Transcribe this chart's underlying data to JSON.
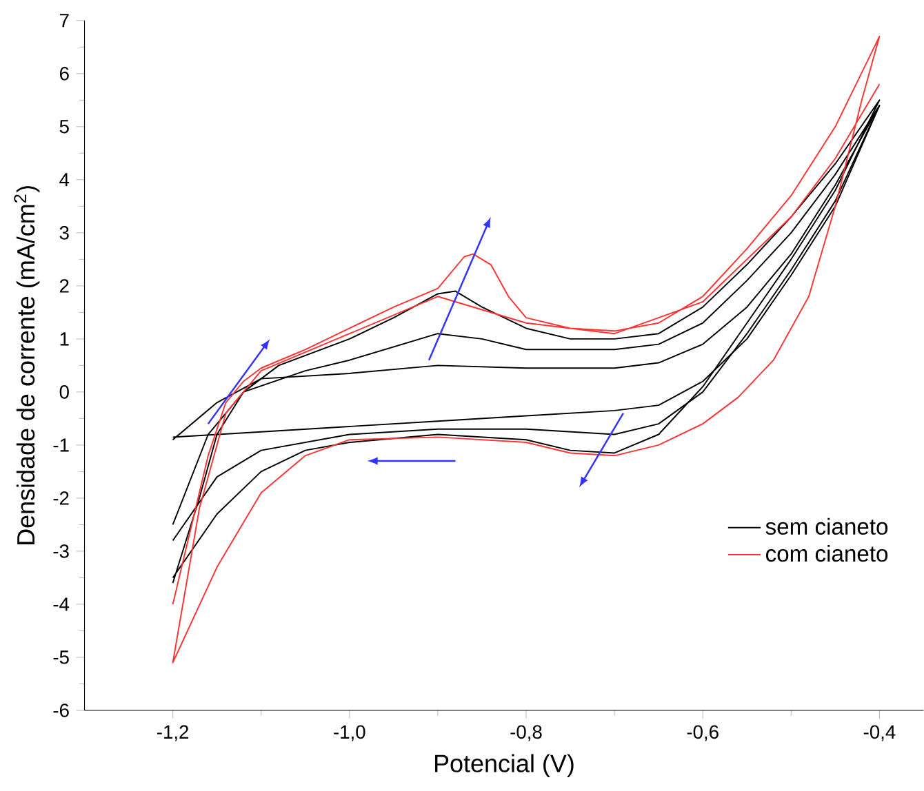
{
  "chart_data": {
    "type": "line",
    "xlabel": "Potencial (V)",
    "ylabel": "Densidade de corrente (mA/cm$^{2}$)",
    "xlim": [
      -1.3,
      -0.35
    ],
    "ylim": [
      -6,
      7
    ],
    "xticks": [
      {
        "value": -1.2,
        "label": "-1,2"
      },
      {
        "value": -1.0,
        "label": "-1,0"
      },
      {
        "value": -0.8,
        "label": "-0,8"
      },
      {
        "value": -0.6,
        "label": "-0,6"
      },
      {
        "value": -0.4,
        "label": "-0,4"
      }
    ],
    "yticks": [
      -6,
      -5,
      -4,
      -3,
      -2,
      -1,
      0,
      1,
      2,
      3,
      4,
      5,
      6,
      7
    ],
    "legend": "bottom right",
    "marker": "none",
    "line_style": "solid",
    "series": [
      {
        "color": "#000000",
        "x": [
          -1.2,
          -1.15,
          -1.1,
          -1.0,
          -0.9,
          -0.8,
          -0.7,
          -0.65,
          -0.6,
          -0.55,
          -0.5,
          -0.45,
          -0.4,
          -0.45,
          -0.5,
          -0.55,
          -0.6,
          -0.65,
          -0.7,
          -0.8,
          -0.9,
          -1.0,
          -1.1,
          -1.2
        ],
        "values": [
          -0.9,
          -0.2,
          0.25,
          0.35,
          0.5,
          0.45,
          0.45,
          0.55,
          0.9,
          1.6,
          2.6,
          3.9,
          5.4,
          3.5,
          2.2,
          1.0,
          0.2,
          -0.25,
          -0.35,
          -0.45,
          -0.55,
          -0.65,
          -0.75,
          -0.85
        ]
      },
      {
        "color": "#000000",
        "x": [
          -1.2,
          -1.16,
          -1.12,
          -1.05,
          -1.0,
          -0.9,
          -0.85,
          -0.8,
          -0.7,
          -0.65,
          -0.6,
          -0.55,
          -0.5,
          -0.45,
          -0.4,
          -0.45,
          -0.5,
          -0.55,
          -0.6,
          -0.65,
          -0.7,
          -0.8,
          -0.9,
          -1.0,
          -1.1,
          -1.15,
          -1.2
        ],
        "values": [
          -2.5,
          -0.8,
          0.0,
          0.4,
          0.6,
          1.1,
          1.0,
          0.8,
          0.8,
          0.9,
          1.3,
          2.1,
          3.0,
          4.1,
          5.4,
          3.6,
          2.3,
          1.1,
          0.0,
          -0.6,
          -0.8,
          -0.7,
          -0.7,
          -0.8,
          -1.1,
          -1.6,
          -2.8
        ]
      },
      {
        "name": "sem cianeto",
        "color": "#000000",
        "x": [
          -1.2,
          -1.17,
          -1.15,
          -1.12,
          -1.08,
          -1.0,
          -0.95,
          -0.9,
          -0.88,
          -0.85,
          -0.8,
          -0.75,
          -0.7,
          -0.65,
          -0.6,
          -0.55,
          -0.5,
          -0.45,
          -0.4,
          -0.45,
          -0.5,
          -0.55,
          -0.6,
          -0.65,
          -0.7,
          -0.75,
          -0.8,
          -0.9,
          -1.0,
          -1.05,
          -1.1,
          -1.15,
          -1.2
        ],
        "values": [
          -3.6,
          -2.0,
          -0.8,
          0.0,
          0.5,
          1.0,
          1.4,
          1.85,
          1.9,
          1.6,
          1.2,
          1.0,
          1.0,
          1.1,
          1.6,
          2.4,
          3.3,
          4.3,
          5.5,
          3.8,
          2.5,
          1.3,
          0.1,
          -0.8,
          -1.15,
          -1.1,
          -0.9,
          -0.8,
          -0.95,
          -1.1,
          -1.5,
          -2.3,
          -3.5
        ]
      },
      {
        "name": "com cianeto",
        "color": "#ff3333",
        "x": [
          -1.2,
          -1.18,
          -1.16,
          -1.14,
          -1.12,
          -1.1,
          -1.05,
          -1.0,
          -0.95,
          -0.9,
          -0.87,
          -0.86,
          -0.84,
          -0.82,
          -0.8,
          -0.75,
          -0.7,
          -0.65,
          -0.6,
          -0.55,
          -0.5,
          -0.45,
          -0.4,
          -0.42,
          -0.45,
          -0.48,
          -0.52,
          -0.56,
          -0.6,
          -0.65,
          -0.7,
          -0.75,
          -0.8,
          -0.9,
          -1.0,
          -1.05,
          -1.1,
          -1.15,
          -1.2,
          -1.17,
          -1.14,
          -1.1,
          -1.0,
          -0.9,
          -0.8,
          -0.7,
          -0.6,
          -0.5,
          -0.45,
          -0.4
        ],
        "values": [
          -4.0,
          -2.6,
          -1.2,
          -0.2,
          0.2,
          0.45,
          0.8,
          1.2,
          1.6,
          1.95,
          2.55,
          2.6,
          2.4,
          1.8,
          1.4,
          1.2,
          1.15,
          1.3,
          1.8,
          2.7,
          3.7,
          5.0,
          6.7,
          5.5,
          3.5,
          1.8,
          0.6,
          -0.1,
          -0.6,
          -1.0,
          -1.2,
          -1.15,
          -0.95,
          -0.85,
          -0.9,
          -1.2,
          -1.9,
          -3.3,
          -5.1,
          -2.2,
          -0.4,
          0.4,
          1.1,
          1.8,
          1.3,
          1.1,
          1.7,
          3.3,
          4.4,
          5.8
        ]
      }
    ]
  }
}
